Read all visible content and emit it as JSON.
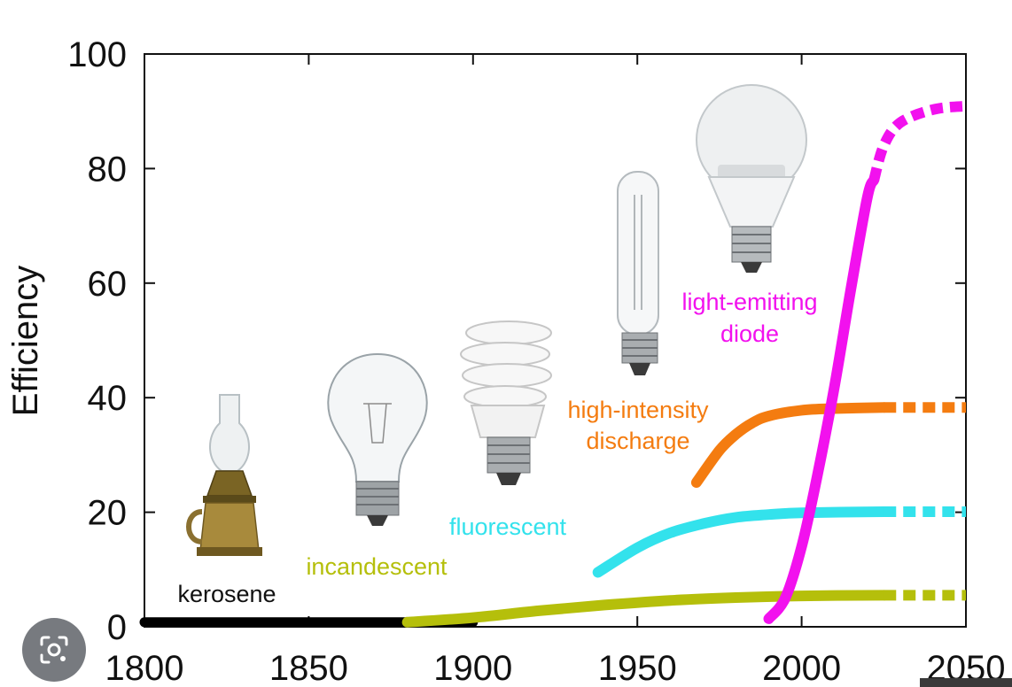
{
  "chart_data": {
    "type": "line",
    "title": "",
    "xlabel": "",
    "ylabel": "Efficiency",
    "xlim": [
      1800,
      2050
    ],
    "ylim": [
      0,
      100
    ],
    "x_ticks": [
      "1800",
      "1850",
      "1900",
      "1950",
      "2000",
      "2050"
    ],
    "y_ticks": [
      "0",
      "20",
      "40",
      "60",
      "80",
      "100"
    ],
    "grid": false,
    "series": [
      {
        "name": "kerosene",
        "color": "#000000",
        "points": [
          [
            1800,
            0.8
          ],
          [
            1900,
            0.8
          ]
        ]
      },
      {
        "name": "incandescent",
        "color": "#b5bf0b",
        "points": [
          [
            1880,
            0.8
          ],
          [
            1900,
            1.6
          ],
          [
            1920,
            2.8
          ],
          [
            1940,
            3.8
          ],
          [
            1960,
            4.6
          ],
          [
            1980,
            5.1
          ],
          [
            2000,
            5.4
          ],
          [
            2025,
            5.5
          ]
        ],
        "projection": [
          [
            2025,
            5.5
          ],
          [
            2050,
            5.5
          ]
        ]
      },
      {
        "name": "fluorescent",
        "color": "#33e2ec",
        "points": [
          [
            1938,
            9.5
          ],
          [
            1950,
            13.8
          ],
          [
            1960,
            16.4
          ],
          [
            1970,
            18.0
          ],
          [
            1980,
            19.1
          ],
          [
            1990,
            19.6
          ],
          [
            2000,
            19.9
          ],
          [
            2025,
            20.1
          ]
        ],
        "projection": [
          [
            2025,
            20.1
          ],
          [
            2050,
            20.1
          ]
        ]
      },
      {
        "name": "high-intensity discharge",
        "color": "#f47c10",
        "points": [
          [
            1968,
            25.2
          ],
          [
            1975,
            30.8
          ],
          [
            1980,
            33.6
          ],
          [
            1985,
            35.6
          ],
          [
            1990,
            36.8
          ],
          [
            2000,
            37.8
          ],
          [
            2010,
            38.1
          ],
          [
            2025,
            38.3
          ]
        ],
        "projection": [
          [
            2025,
            38.3
          ],
          [
            2050,
            38.3
          ]
        ]
      },
      {
        "name": "light-emitting diode",
        "color": "#f211ee",
        "points": [
          [
            1990,
            1.4
          ],
          [
            1995,
            5.0
          ],
          [
            2000,
            14.0
          ],
          [
            2005,
            27.0
          ],
          [
            2010,
            42.0
          ],
          [
            2015,
            59.0
          ],
          [
            2020,
            75.0
          ],
          [
            2022,
            78.0
          ]
        ],
        "projection": [
          [
            2022,
            78.0
          ],
          [
            2025,
            84.0
          ],
          [
            2030,
            88.0
          ],
          [
            2040,
            90.3
          ],
          [
            2050,
            90.9
          ]
        ]
      }
    ],
    "annotations": [
      {
        "text": "kerosene",
        "color": "#111111"
      },
      {
        "text": "incandescent",
        "color": "#b5bf0b"
      },
      {
        "text": "fluorescent",
        "color": "#33e2ec"
      },
      {
        "text": "high-intensity",
        "color": "#f47c10"
      },
      {
        "text": "discharge",
        "color": "#f47c10"
      },
      {
        "text": "light-emitting",
        "color": "#f211ee"
      },
      {
        "text": "diode",
        "color": "#f211ee"
      }
    ]
  },
  "icons": {
    "lens_button": "lens-search-icon"
  }
}
